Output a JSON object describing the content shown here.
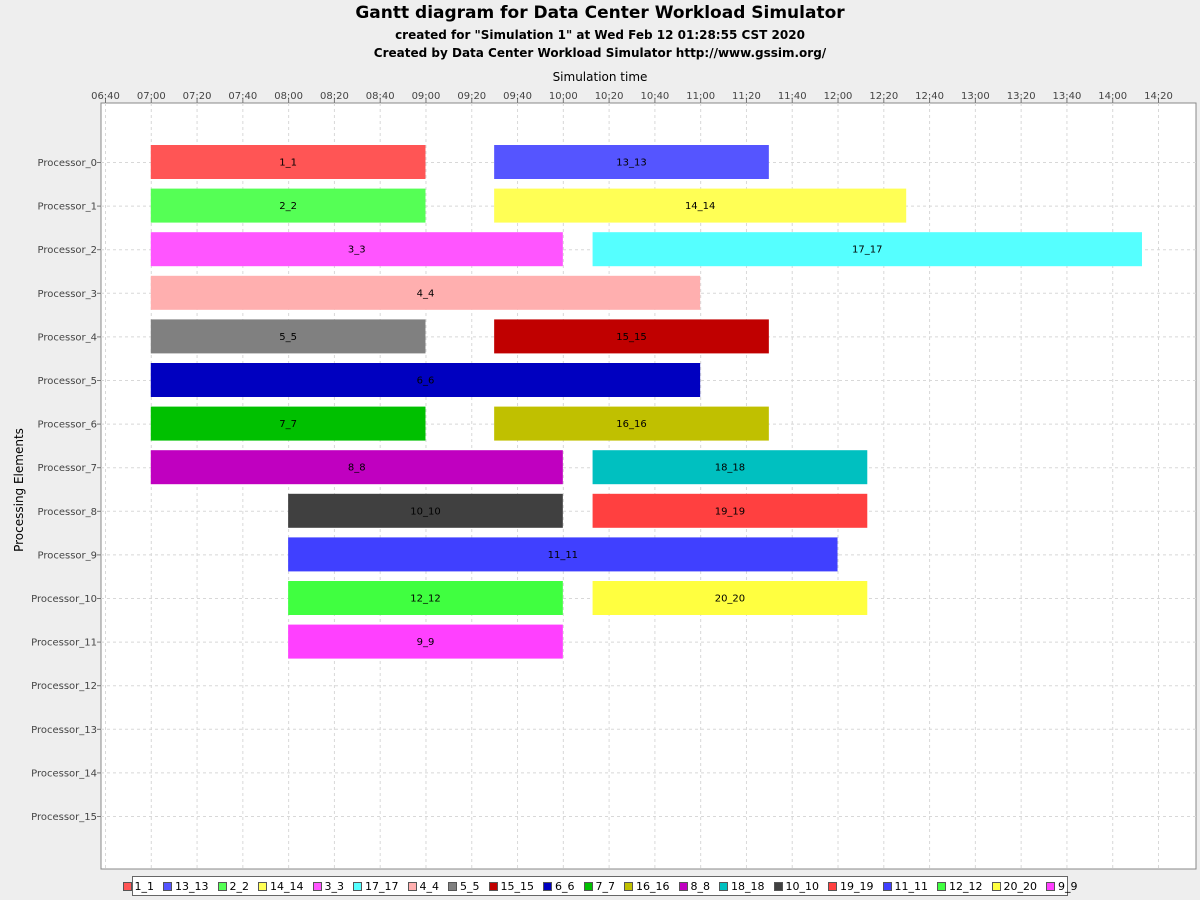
{
  "title": "Gantt diagram for Data Center Workload Simulator",
  "subtitle1": "created for \"Simulation 1\" at Wed Feb 12 01:28:55 CST 2020",
  "subtitle2": "Created by Data Center Workload Simulator http://www.gssim.org/",
  "chart_data": {
    "type": "gantt",
    "xlabel": "Simulation time",
    "ylabel": "Processing Elements",
    "xlim": [
      "06:40",
      "14:20"
    ],
    "x_ticks": [
      "06:40",
      "07:00",
      "07:20",
      "07:40",
      "08:00",
      "08:20",
      "08:40",
      "09:00",
      "09:20",
      "09:40",
      "10:00",
      "10:20",
      "10:40",
      "11:00",
      "11:20",
      "11:40",
      "12:00",
      "12:20",
      "12:40",
      "13:00",
      "13:20",
      "13:40",
      "14:00",
      "14:20"
    ],
    "categories": [
      "Processor_0",
      "Processor_1",
      "Processor_2",
      "Processor_3",
      "Processor_4",
      "Processor_5",
      "Processor_6",
      "Processor_7",
      "Processor_8",
      "Processor_9",
      "Processor_10",
      "Processor_11",
      "Processor_12",
      "Processor_13",
      "Processor_14",
      "Processor_15"
    ],
    "grid": true,
    "legend_position": "bottom",
    "tasks": [
      {
        "name": "1_1",
        "processor": "Processor_0",
        "start": "07:00",
        "end": "09:00",
        "color": "#ff5555"
      },
      {
        "name": "13_13",
        "processor": "Processor_0",
        "start": "09:30",
        "end": "11:30",
        "color": "#5555ff"
      },
      {
        "name": "2_2",
        "processor": "Processor_1",
        "start": "07:00",
        "end": "09:00",
        "color": "#55ff55"
      },
      {
        "name": "14_14",
        "processor": "Processor_1",
        "start": "09:30",
        "end": "12:30",
        "color": "#ffff55"
      },
      {
        "name": "3_3",
        "processor": "Processor_2",
        "start": "07:00",
        "end": "10:00",
        "color": "#ff55ff"
      },
      {
        "name": "17_17",
        "processor": "Processor_2",
        "start": "10:13",
        "end": "14:13",
        "color": "#55ffff"
      },
      {
        "name": "4_4",
        "processor": "Processor_3",
        "start": "07:00",
        "end": "11:00",
        "color": "#ffafaf"
      },
      {
        "name": "5_5",
        "processor": "Processor_4",
        "start": "07:00",
        "end": "09:00",
        "color": "#808080"
      },
      {
        "name": "15_15",
        "processor": "Processor_4",
        "start": "09:30",
        "end": "11:30",
        "color": "#c00000"
      },
      {
        "name": "6_6",
        "processor": "Processor_5",
        "start": "07:00",
        "end": "11:00",
        "color": "#0000c0"
      },
      {
        "name": "7_7",
        "processor": "Processor_6",
        "start": "07:00",
        "end": "09:00",
        "color": "#00c000"
      },
      {
        "name": "16_16",
        "processor": "Processor_6",
        "start": "09:30",
        "end": "11:30",
        "color": "#c0c000"
      },
      {
        "name": "8_8",
        "processor": "Processor_7",
        "start": "07:00",
        "end": "10:00",
        "color": "#c000c0"
      },
      {
        "name": "18_18",
        "processor": "Processor_7",
        "start": "10:13",
        "end": "12:13",
        "color": "#00c0c0"
      },
      {
        "name": "10_10",
        "processor": "Processor_8",
        "start": "08:00",
        "end": "10:00",
        "color": "#404040"
      },
      {
        "name": "19_19",
        "processor": "Processor_8",
        "start": "10:13",
        "end": "12:13",
        "color": "#ff4040"
      },
      {
        "name": "11_11",
        "processor": "Processor_9",
        "start": "08:00",
        "end": "12:00",
        "color": "#4040ff"
      },
      {
        "name": "12_12",
        "processor": "Processor_10",
        "start": "08:00",
        "end": "10:00",
        "color": "#40ff40"
      },
      {
        "name": "20_20",
        "processor": "Processor_10",
        "start": "10:13",
        "end": "12:13",
        "color": "#ffff40"
      },
      {
        "name": "9_9",
        "processor": "Processor_11",
        "start": "08:00",
        "end": "10:00",
        "color": "#ff40ff"
      }
    ],
    "legend": [
      {
        "label": "1_1",
        "color": "#ff5555"
      },
      {
        "label": "13_13",
        "color": "#5555ff"
      },
      {
        "label": "2_2",
        "color": "#55ff55"
      },
      {
        "label": "14_14",
        "color": "#ffff55"
      },
      {
        "label": "3_3",
        "color": "#ff55ff"
      },
      {
        "label": "17_17",
        "color": "#55ffff"
      },
      {
        "label": "4_4",
        "color": "#ffafaf"
      },
      {
        "label": "5_5",
        "color": "#808080"
      },
      {
        "label": "15_15",
        "color": "#c00000"
      },
      {
        "label": "6_6",
        "color": "#0000c0"
      },
      {
        "label": "7_7",
        "color": "#00c000"
      },
      {
        "label": "16_16",
        "color": "#c0c000"
      },
      {
        "label": "8_8",
        "color": "#c000c0"
      },
      {
        "label": "18_18",
        "color": "#00c0c0"
      },
      {
        "label": "10_10",
        "color": "#404040"
      },
      {
        "label": "19_19",
        "color": "#ff4040"
      },
      {
        "label": "11_11",
        "color": "#4040ff"
      },
      {
        "label": "12_12",
        "color": "#40ff40"
      },
      {
        "label": "20_20",
        "color": "#ffff40"
      },
      {
        "label": "9_9",
        "color": "#ff40ff"
      }
    ]
  }
}
